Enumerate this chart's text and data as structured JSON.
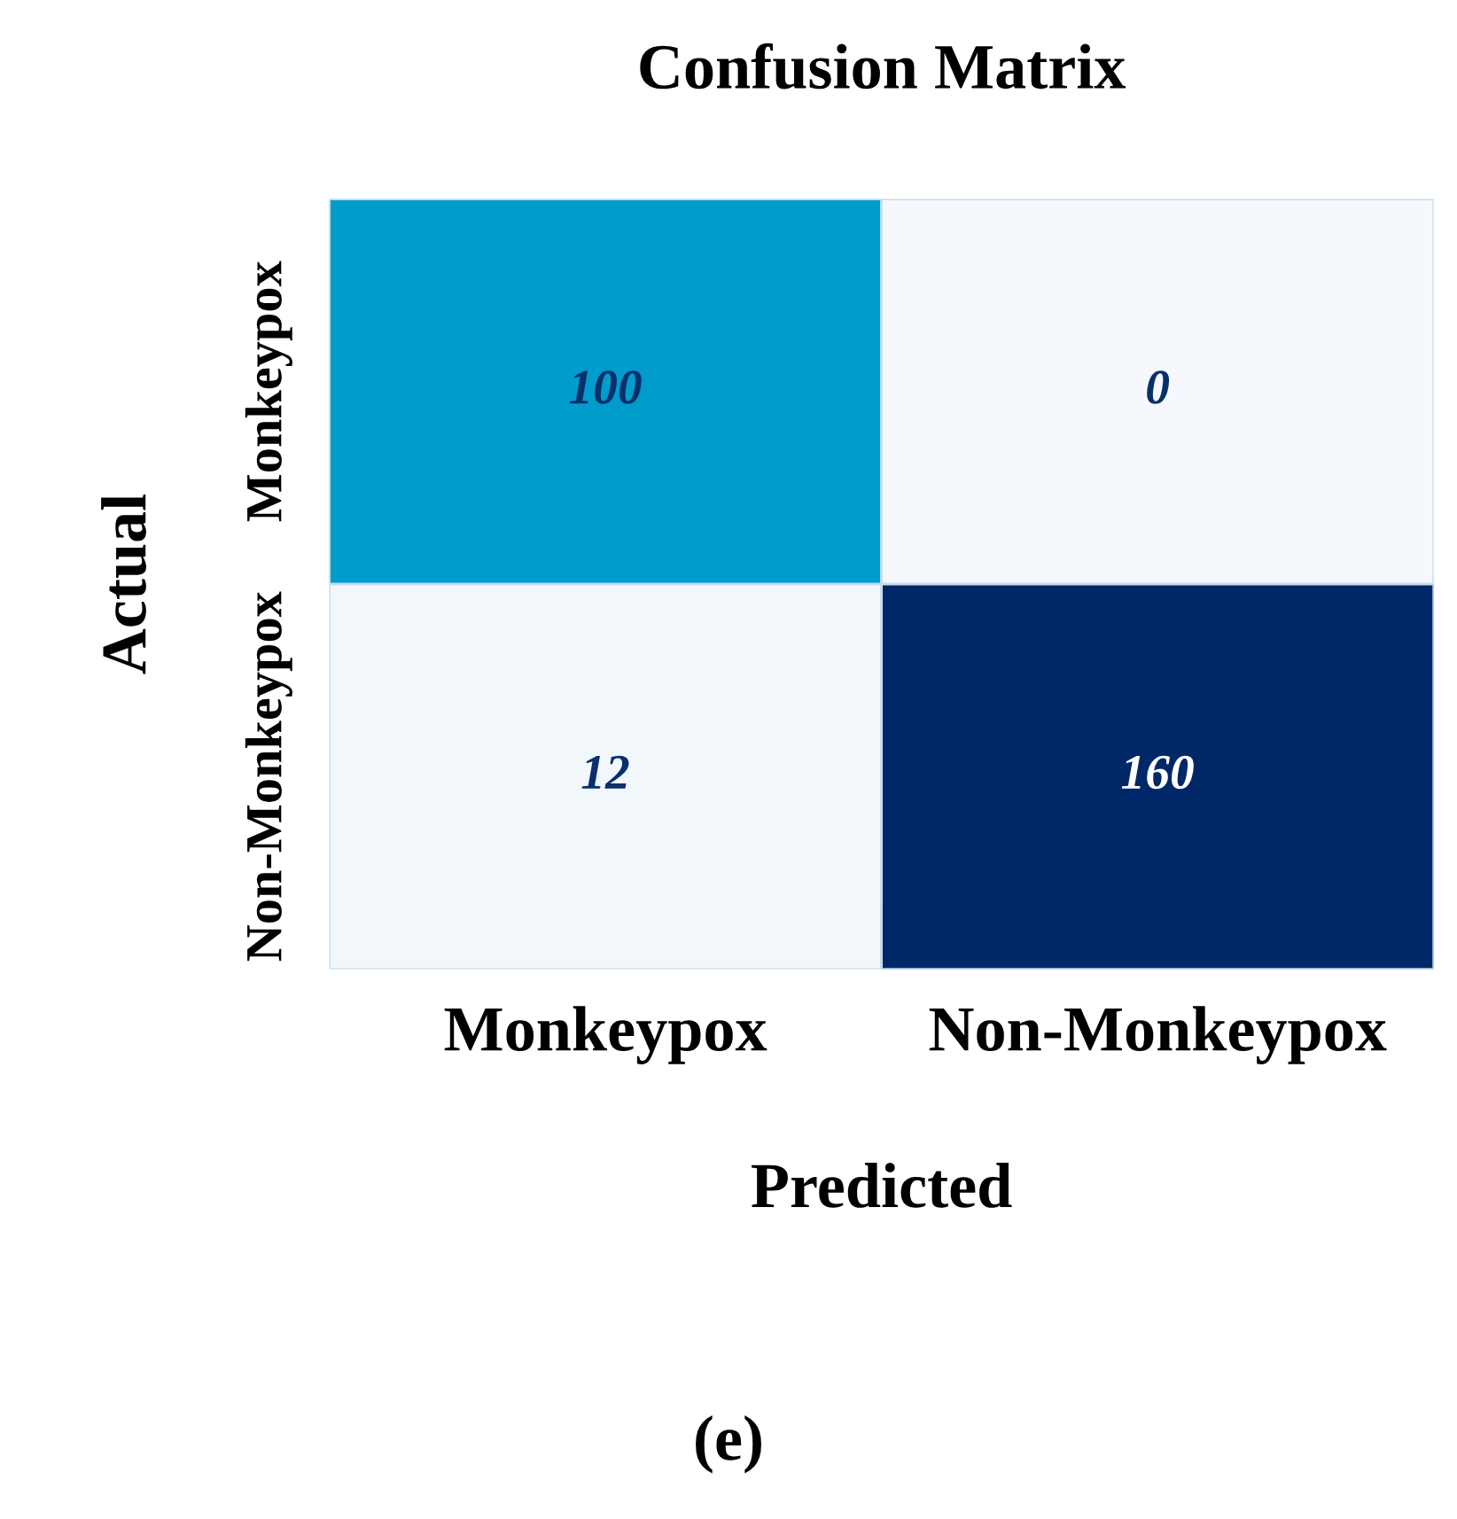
{
  "chart_data": {
    "type": "heatmap",
    "title": "Confusion Matrix",
    "xlabel": "Predicted",
    "ylabel": "Actual",
    "categories": [
      "Monkeypox",
      "Non-Monkeypox"
    ],
    "y_categories": [
      "Monkeypox",
      "Non-Monkeypox"
    ],
    "cells": [
      [
        100,
        0
      ],
      [
        12,
        160
      ]
    ],
    "colors": [
      "#009ccc",
      "#f5f9fd",
      "#f2f7fc",
      "#002868"
    ],
    "data_labels": true,
    "annotations": [
      "(e)"
    ]
  }
}
